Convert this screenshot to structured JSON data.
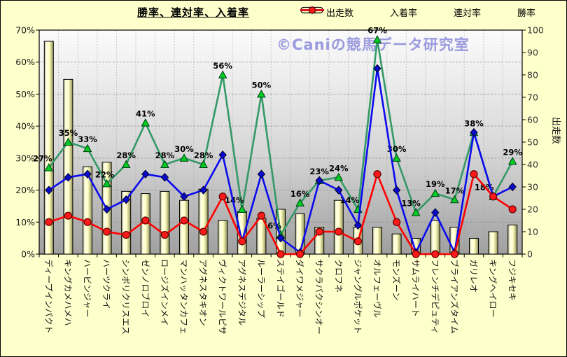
{
  "title": "勝率、連対率、入着率",
  "watermark": "©Caniの競馬データ研究室",
  "legend": [
    {
      "name": "出走数",
      "swatch": "bar"
    },
    {
      "name": "入着率",
      "swatch": "triangle"
    },
    {
      "name": "連対率",
      "swatch": "diamond"
    },
    {
      "name": "勝率",
      "swatch": "circle"
    }
  ],
  "axes": {
    "left_ticks": [
      "0%",
      "10%",
      "20%",
      "30%",
      "40%",
      "50%",
      "60%",
      "70%"
    ],
    "right_ticks": [
      "0",
      "10",
      "20",
      "30",
      "40",
      "50",
      "60",
      "70",
      "80",
      "90",
      "100"
    ],
    "right_axis_title": "出走数"
  },
  "chart_data": {
    "type": "bar",
    "subtype": "bar+line combo, dual axis",
    "title": "勝率、連対率、入着率",
    "categories": [
      "ディープインパクト",
      "キングカメハメハ",
      "ハービンジャー",
      "ハーツクライ",
      "シンボリクリスエス",
      "ゼンノロブロイ",
      "ロージズインメイ",
      "マンハッタンカフェ",
      "アグネスタキオン",
      "ヴィクトワールピサ",
      "アグネスデジタル",
      "ルーラーシップ",
      "ステイゴールド",
      "ダイワメジャー",
      "サクラバクシンオー",
      "クロフネ",
      "ジャングルポケット",
      "オルフェーヴル",
      "モンズーン",
      "サムライハート",
      "フレンチデピュティ",
      "ブライアンズタイム",
      "ガリレオ",
      "キングヘイロー",
      "フジキセキ"
    ],
    "series": [
      {
        "name": "出走数",
        "type": "bar",
        "axis": "right",
        "values": [
          95,
          78,
          39,
          41,
          28,
          27,
          28,
          24,
          29,
          15,
          19,
          16,
          20,
          18,
          12,
          24,
          12,
          12,
          9,
          7,
          15,
          12,
          7,
          10,
          13
        ]
      },
      {
        "name": "入着率",
        "type": "line",
        "marker": "triangle",
        "axis": "left",
        "unit": "%",
        "data_labels": true,
        "values": [
          27,
          35,
          33,
          22,
          28,
          41,
          28,
          30,
          28,
          56,
          14,
          50,
          6,
          16,
          23,
          24,
          14,
          67,
          30,
          13,
          19,
          17,
          38,
          18,
          29
        ]
      },
      {
        "name": "連対率",
        "type": "line",
        "marker": "diamond",
        "axis": "left",
        "unit": "%",
        "data_labels": false,
        "values": [
          20,
          24,
          25,
          14,
          17,
          25,
          24,
          18,
          20,
          31,
          4,
          25,
          5,
          0.5,
          23,
          20,
          9,
          58,
          20,
          0.5,
          13,
          0.5,
          38,
          18,
          21
        ]
      },
      {
        "name": "勝率",
        "type": "line",
        "marker": "circle",
        "axis": "left",
        "unit": "%",
        "data_labels": false,
        "values": [
          10,
          12,
          10,
          7,
          6,
          10.5,
          6,
          10.5,
          7,
          18,
          4,
          12,
          0,
          0,
          7,
          7,
          4,
          25,
          10,
          0,
          0,
          0,
          25,
          18,
          14
        ]
      }
    ],
    "left_axis": {
      "min": 0,
      "max": 70,
      "step": 10,
      "format": "percent"
    },
    "right_axis": {
      "min": 0,
      "max": 100,
      "step": 10,
      "title": "出走数"
    },
    "grid": true,
    "legend_position": "top-right"
  },
  "colors": {
    "background": "#FFFFCC",
    "plot_gradient_top": "#FBFBFB",
    "plot_gradient_mid": "#D6D6D6",
    "plot_gradient_bottom": "#A0A0A0",
    "bar_fill": "#FFFFC4",
    "bar_edge": "#000000",
    "place_rate_line": "#339966",
    "triangle_fill": "#00CC22",
    "quinella_rate_line": "#0B0BEE",
    "diamond_fill": "#0A0ACD",
    "win_rate_line": "#FF0000",
    "circle_fill": "#FF1A1A",
    "watermark": "#9A9ADF",
    "gridline": "#888888",
    "text": "#1A1A1A"
  }
}
